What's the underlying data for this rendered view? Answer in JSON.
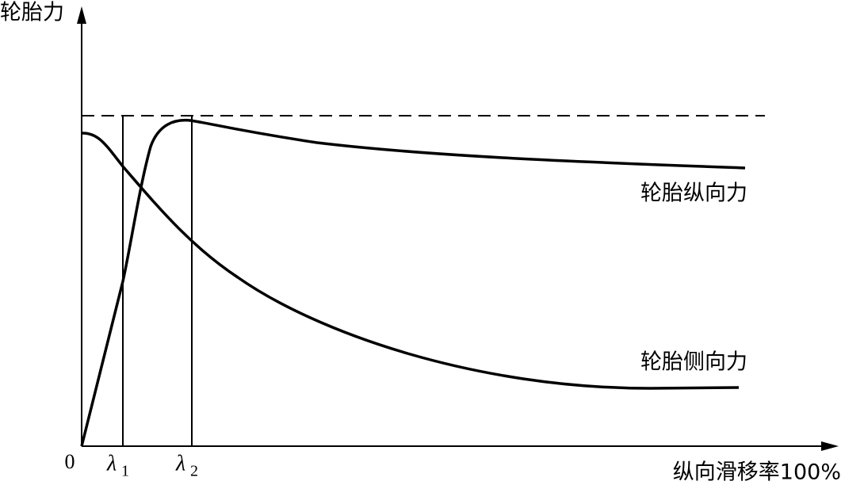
{
  "y_axis_label": "轮胎力",
  "x_axis_label": "纵向滑移率100%",
  "origin_label": "0",
  "markers": [
    {
      "symbol": "λ",
      "subscript": "1"
    },
    {
      "symbol": "λ",
      "subscript": "2"
    }
  ],
  "curve_labels": {
    "longitudinal": "轮胎纵向力",
    "lateral": "轮胎侧向力"
  }
}
